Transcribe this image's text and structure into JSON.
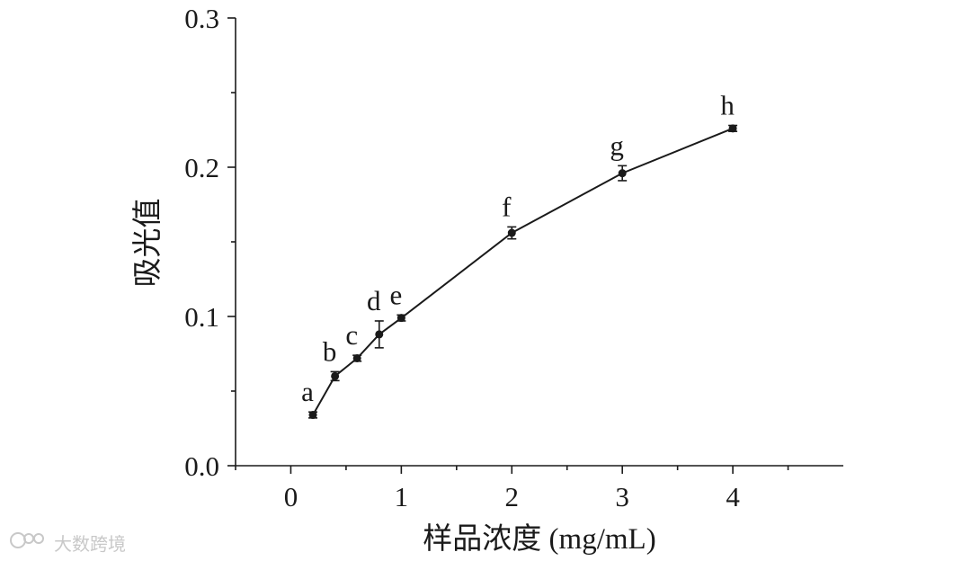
{
  "chart_data": {
    "type": "line",
    "xlabel": "样品浓度 (mg/mL)",
    "ylabel": "吸光值",
    "xlim": [
      -0.5,
      5
    ],
    "ylim": [
      0,
      0.3
    ],
    "x_ticks": [
      "0",
      "1",
      "2",
      "3",
      "4"
    ],
    "y_ticks": [
      "0.0",
      "0.1",
      "0.2",
      "0.3"
    ],
    "grid": false,
    "error_bars": true,
    "series": [
      {
        "points": [
          {
            "x": 0.2,
            "y": 0.034,
            "err": 0.002,
            "label": "a"
          },
          {
            "x": 0.4,
            "y": 0.06,
            "err": 0.003,
            "label": "b"
          },
          {
            "x": 0.6,
            "y": 0.072,
            "err": 0.002,
            "label": "c"
          },
          {
            "x": 0.8,
            "y": 0.088,
            "err": 0.009,
            "label": "d"
          },
          {
            "x": 1.0,
            "y": 0.099,
            "err": 0.002,
            "label": "e"
          },
          {
            "x": 2.0,
            "y": 0.156,
            "err": 0.004,
            "label": "f"
          },
          {
            "x": 3.0,
            "y": 0.196,
            "err": 0.005,
            "label": "g"
          },
          {
            "x": 4.0,
            "y": 0.226,
            "err": 0.002,
            "label": "h"
          }
        ]
      }
    ]
  },
  "watermark": {
    "text": "大数跨境",
    "icon": "dashu-logo-icon"
  },
  "colors": {
    "line": "#1a1a1a",
    "watermark": "#c8c8c8"
  }
}
